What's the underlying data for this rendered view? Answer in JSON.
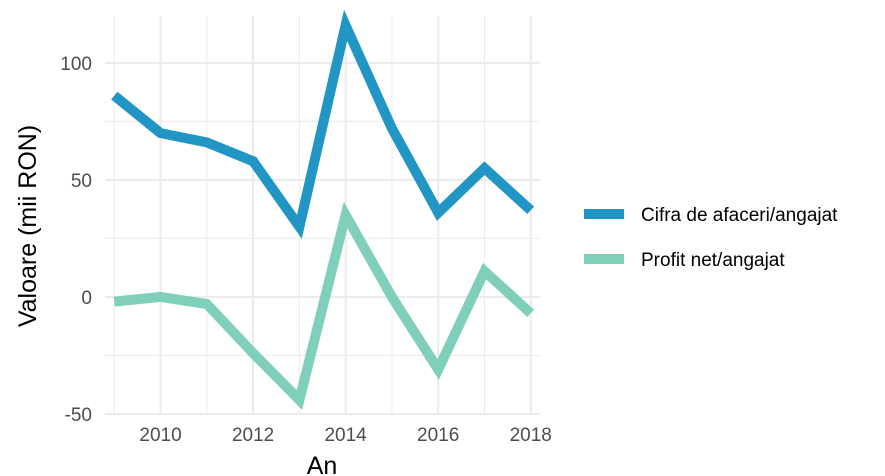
{
  "chart_data": {
    "type": "line",
    "title": "",
    "xlabel": "An",
    "ylabel": "Valoare (mii RON)",
    "x": [
      2009,
      2010,
      2011,
      2012,
      2013,
      2014,
      2015,
      2016,
      2017,
      2018
    ],
    "xlim": [
      2008.8,
      2018.2
    ],
    "ylim": [
      -50,
      120
    ],
    "x_ticks": [
      "2010",
      "2012",
      "2014",
      "2016",
      "2018"
    ],
    "y_ticks": [
      "100",
      "50",
      "0",
      "-50"
    ],
    "grid": true,
    "legend_position": "right",
    "series": [
      {
        "name": "Cifra de afaceri/angajat",
        "color": "#2196c4",
        "values": [
          86,
          70,
          66,
          58,
          30,
          116,
          72,
          36,
          55,
          37
        ]
      },
      {
        "name": "Profit net/angajat",
        "color": "#7fcfba",
        "values": [
          -2,
          0,
          -3,
          -24,
          -44,
          35,
          0,
          -31,
          11,
          -7
        ]
      }
    ]
  }
}
